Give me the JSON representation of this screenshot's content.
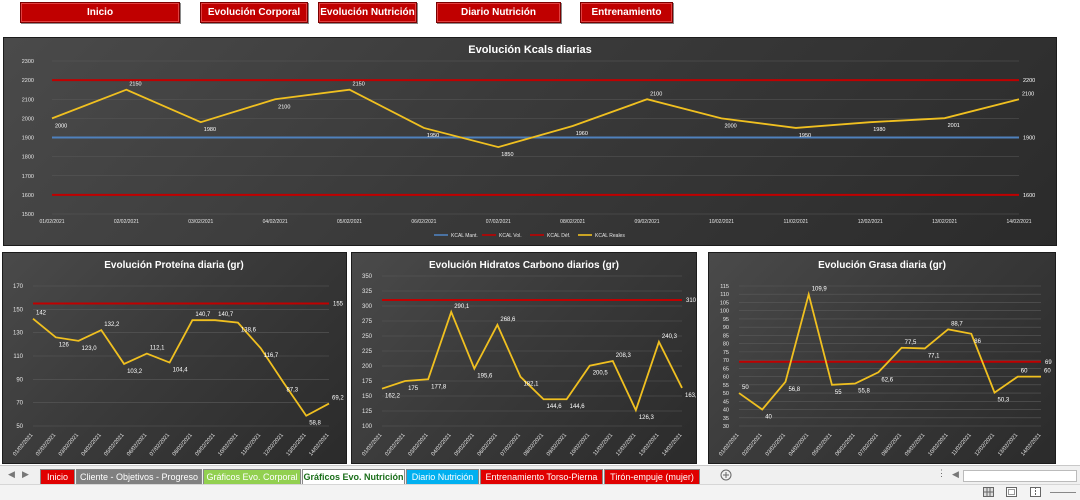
{
  "nav": {
    "buttons": [
      "Inicio",
      "Evolución Corporal",
      "Evolución Nutrición",
      "Diario Nutrición",
      "Entrenamiento"
    ]
  },
  "dates": [
    "01/02/2021",
    "02/02/2021",
    "03/02/2021",
    "04/02/2021",
    "05/02/2021",
    "06/02/2021",
    "07/02/2021",
    "08/02/2021",
    "09/02/2021",
    "10/02/2021",
    "11/02/2021",
    "12/02/2021",
    "13/02/2021",
    "14/02/2021"
  ],
  "chart_data": [
    {
      "id": "kcal",
      "type": "line",
      "title": "Evolución Kcals diarias",
      "ylim": [
        1500,
        2300
      ],
      "yticks": [
        1500,
        1600,
        1700,
        1800,
        1900,
        2000,
        2100,
        2200,
        2300
      ],
      "grid": true,
      "legend": "bottom",
      "series": [
        {
          "name": "KCAL Mant.",
          "color": "#4f81bd",
          "values": [
            1900,
            1900,
            1900,
            1900,
            1900,
            1900,
            1900,
            1900,
            1900,
            1900,
            1900,
            1900,
            1900,
            1900
          ],
          "end_label": "1900"
        },
        {
          "name": "KCAL Vol.",
          "color": "#c00000",
          "values": [
            2200,
            2200,
            2200,
            2200,
            2200,
            2200,
            2200,
            2200,
            2200,
            2200,
            2200,
            2200,
            2200,
            2200
          ],
          "end_label": "2200"
        },
        {
          "name": "KCAL Déf.",
          "color": "#c00000",
          "values": [
            1600,
            1600,
            1600,
            1600,
            1600,
            1600,
            1600,
            1600,
            1600,
            1600,
            1600,
            1600,
            1600,
            1600
          ],
          "end_label": "1600"
        },
        {
          "name": "KCAL Reales",
          "color": "#f0c020",
          "values": [
            2000,
            2150,
            1980,
            2100,
            2150,
            1950,
            1850,
            1960,
            2100,
            2000,
            1950,
            1980,
            2001,
            2100
          ],
          "labels": [
            "2000",
            "2150",
            "1980",
            "2100",
            "2150",
            "1950",
            "1850",
            "1960",
            "2100",
            "2000",
            "1950",
            "1980",
            "2001",
            "2100"
          ]
        }
      ]
    },
    {
      "id": "proteina",
      "type": "line",
      "title": "Evolución Proteína diaria (gr)",
      "ylim": [
        50,
        170
      ],
      "yticks": [
        50,
        70,
        90,
        110,
        130,
        150,
        170
      ],
      "grid": true,
      "series": [
        {
          "name": "",
          "color": "#c00000",
          "values": [
            155,
            155,
            155,
            155,
            155,
            155,
            155,
            155,
            155,
            155,
            155,
            155,
            155,
            155
          ],
          "end_label": "155"
        },
        {
          "name": "",
          "color": "#f0c020",
          "values": [
            142,
            126,
            123,
            132.2,
            103.2,
            112.1,
            104.4,
            140.7,
            140.7,
            138.6,
            116.7,
            87.3,
            58.8,
            69.2
          ],
          "labels": [
            "142",
            "126",
            "123,0",
            "132,2",
            "103,2",
            "112,1",
            "104,4",
            "140,7",
            "140,7",
            "138,6",
            "116,7",
            "87,3",
            "58,8",
            "69,2"
          ]
        }
      ]
    },
    {
      "id": "hidratos",
      "type": "line",
      "title": "Evolución Hidratos Carbono diarios (gr)",
      "ylim": [
        100,
        350
      ],
      "yticks": [
        100,
        125,
        150,
        175,
        200,
        225,
        250,
        275,
        300,
        325,
        350
      ],
      "grid": true,
      "series": [
        {
          "name": "",
          "color": "#c00000",
          "values": [
            310,
            310,
            310,
            310,
            310,
            310,
            310,
            310,
            310,
            310,
            310,
            310,
            310,
            310
          ],
          "end_label": "310"
        },
        {
          "name": "",
          "color": "#f0c020",
          "values": [
            162.2,
            175,
            177.8,
            290.1,
            195.6,
            268.6,
            182.1,
            144.6,
            144.6,
            200.5,
            208.3,
            126.3,
            240.3,
            163.4
          ],
          "labels": [
            "162,2",
            "175",
            "177,8",
            "290,1",
            "195,6",
            "268,6",
            "182,1",
            "144,6",
            "144,6",
            "200,5",
            "208,3",
            "126,3",
            "240,3",
            "163,4"
          ]
        }
      ]
    },
    {
      "id": "grasa",
      "type": "line",
      "title": "Evolución Grasa diaria (gr)",
      "ylim": [
        30,
        115
      ],
      "yticks": [
        30,
        35,
        40,
        45,
        50,
        55,
        60,
        65,
        70,
        75,
        80,
        85,
        90,
        95,
        100,
        105,
        110,
        115
      ],
      "grid": true,
      "series": [
        {
          "name": "",
          "color": "#c00000",
          "values": [
            69,
            69,
            69,
            69,
            69,
            69,
            69,
            69,
            69,
            69,
            69,
            69,
            69,
            69
          ],
          "end_label": "69"
        },
        {
          "name": "",
          "color": "#f0c020",
          "values": [
            50,
            40,
            56.8,
            109.9,
            55,
            55.8,
            62.6,
            77.5,
            77.1,
            88.7,
            86,
            50.3,
            60,
            60
          ],
          "labels": [
            "50",
            "40",
            "56,8",
            "109,9",
            "55",
            "55,8",
            "62,6",
            "77,5",
            "77,1",
            "88,7",
            "86",
            "50,3",
            "60",
            "60"
          ]
        }
      ]
    }
  ],
  "sheet_tabs": [
    {
      "label": "Inicio",
      "bg": "#e00000",
      "fg": "#ffffff"
    },
    {
      "label": "Cliente - Objetivos - Progreso",
      "bg": "#808080",
      "fg": "#ffffff"
    },
    {
      "label": "Gráficos Evo. Corporal",
      "bg": "#92d050",
      "fg": "#ffffff"
    },
    {
      "label": "Gráficos Evo. Nutrición",
      "bg": "#ffffff",
      "fg": "#1a6e1a"
    },
    {
      "label": "Diario Nutrición",
      "bg": "#00b0f0",
      "fg": "#ffffff"
    },
    {
      "label": "Entrenamiento Torso-Pierna",
      "bg": "#e00000",
      "fg": "#ffffff"
    },
    {
      "label": "Tirón-empuje (mujer)",
      "bg": "#e00000",
      "fg": "#ffffff"
    }
  ],
  "icons": {
    "add_sheet": "plus-circle-icon",
    "view_normal": "grid-icon",
    "view_layout": "page-layout-icon",
    "view_break": "page-break-icon"
  }
}
